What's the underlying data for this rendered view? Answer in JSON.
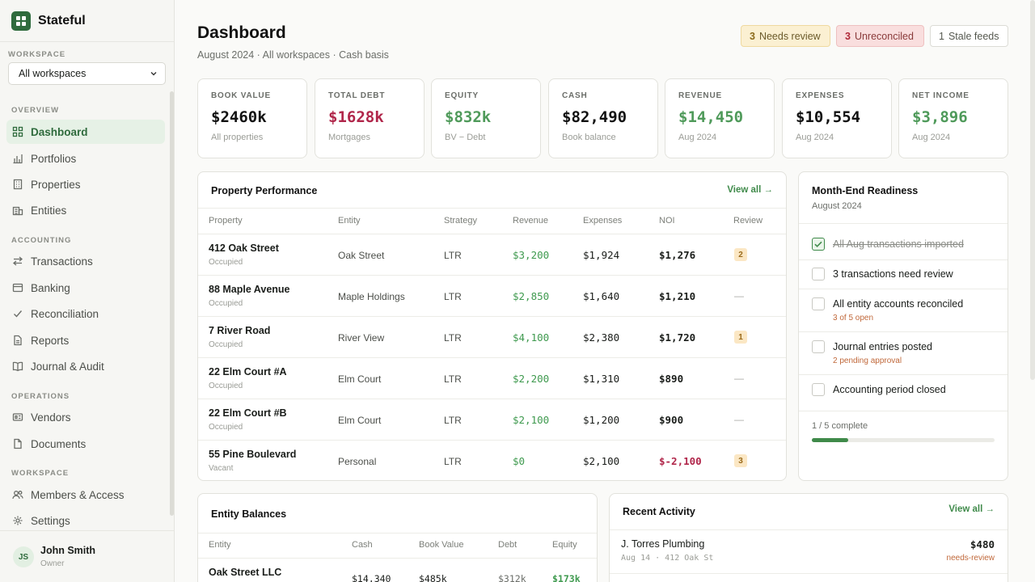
{
  "app": {
    "name": "Stateful"
  },
  "sidebar": {
    "workspace_label": "WORKSPACE",
    "workspace_select": "All workspaces",
    "sections": [
      {
        "label": "OVERVIEW",
        "items": [
          {
            "label": "Dashboard",
            "icon": "grid-icon",
            "active": true
          },
          {
            "label": "Portfolios",
            "icon": "bar-chart-icon"
          },
          {
            "label": "Properties",
            "icon": "building-icon"
          },
          {
            "label": "Entities",
            "icon": "office-icon"
          }
        ]
      },
      {
        "label": "ACCOUNTING",
        "items": [
          {
            "label": "Transactions",
            "icon": "arrows-icon"
          },
          {
            "label": "Banking",
            "icon": "card-icon"
          },
          {
            "label": "Reconciliation",
            "icon": "check-icon"
          },
          {
            "label": "Reports",
            "icon": "file-icon"
          },
          {
            "label": "Journal & Audit",
            "icon": "book-icon"
          }
        ]
      },
      {
        "label": "OPERATIONS",
        "items": [
          {
            "label": "Vendors",
            "icon": "vendor-icon"
          },
          {
            "label": "Documents",
            "icon": "document-icon"
          }
        ]
      },
      {
        "label": "WORKSPACE",
        "items": [
          {
            "label": "Members & Access",
            "icon": "users-icon"
          },
          {
            "label": "Settings",
            "icon": "gear-icon"
          }
        ]
      }
    ],
    "user": {
      "initials": "JS",
      "name": "John Smith",
      "role": "Owner"
    }
  },
  "header": {
    "title": "Dashboard",
    "subtitle": "August 2024 · All workspaces · Cash basis",
    "badges": [
      {
        "count": "3",
        "label": "Needs review"
      },
      {
        "count": "3",
        "label": "Unreconciled"
      },
      {
        "count": "1",
        "label": "Stale feeds"
      }
    ]
  },
  "kpis": [
    {
      "label": "BOOK VALUE",
      "value": "$2460k",
      "sub": "All properties",
      "tone": ""
    },
    {
      "label": "TOTAL DEBT",
      "value": "$1628k",
      "sub": "Mortgages",
      "tone": "red"
    },
    {
      "label": "EQUITY",
      "value": "$832k",
      "sub": "BV − Debt",
      "tone": "green"
    },
    {
      "label": "CASH",
      "value": "$82,490",
      "sub": "Book balance",
      "tone": ""
    },
    {
      "label": "REVENUE",
      "value": "$14,450",
      "sub": "Aug 2024",
      "tone": "green"
    },
    {
      "label": "EXPENSES",
      "value": "$10,554",
      "sub": "Aug 2024",
      "tone": ""
    },
    {
      "label": "NET INCOME",
      "value": "$3,896",
      "sub": "Aug 2024",
      "tone": "green"
    }
  ],
  "performance": {
    "title": "Property Performance",
    "view_all": "View all →",
    "columns": [
      "Property",
      "Entity",
      "Strategy",
      "Revenue",
      "Expenses",
      "NOI",
      "Review"
    ],
    "rows": [
      {
        "property": "412 Oak Street",
        "status": "Occupied",
        "entity": "Oak Street",
        "strategy": "LTR",
        "revenue": "$3,200",
        "expenses": "$1,924",
        "noi": "$1,276",
        "review": "2"
      },
      {
        "property": "88 Maple Avenue",
        "status": "Occupied",
        "entity": "Maple Holdings",
        "strategy": "LTR",
        "revenue": "$2,850",
        "expenses": "$1,640",
        "noi": "$1,210",
        "review": "—"
      },
      {
        "property": "7 River Road",
        "status": "Occupied",
        "entity": "River View",
        "strategy": "LTR",
        "revenue": "$4,100",
        "expenses": "$2,380",
        "noi": "$1,720",
        "review": "1"
      },
      {
        "property": "22 Elm Court #A",
        "status": "Occupied",
        "entity": "Elm Court",
        "strategy": "LTR",
        "revenue": "$2,200",
        "expenses": "$1,310",
        "noi": "$890",
        "review": "—"
      },
      {
        "property": "22 Elm Court #B",
        "status": "Occupied",
        "entity": "Elm Court",
        "strategy": "LTR",
        "revenue": "$2,100",
        "expenses": "$1,200",
        "noi": "$900",
        "review": "—"
      },
      {
        "property": "55 Pine Boulevard",
        "status": "Vacant",
        "entity": "Personal",
        "strategy": "LTR",
        "revenue": "$0",
        "expenses": "$2,100",
        "noi": "$-2,100",
        "review": "3"
      }
    ]
  },
  "readiness": {
    "title": "Month-End Readiness",
    "subtitle": "August 2024",
    "items": [
      {
        "label": "All Aug transactions imported",
        "done": true,
        "sub": ""
      },
      {
        "label": "3 transactions need review",
        "done": false,
        "sub": ""
      },
      {
        "label": "All entity accounts reconciled",
        "done": false,
        "sub": "3 of 5 open"
      },
      {
        "label": "Journal entries posted",
        "done": false,
        "sub": "2 pending approval"
      },
      {
        "label": "Accounting period closed",
        "done": false,
        "sub": ""
      }
    ],
    "progress_label": "1 / 5 complete",
    "progress_fraction": 0.2
  },
  "entity_balances": {
    "title": "Entity Balances",
    "columns": [
      "Entity",
      "Cash",
      "Book Value",
      "Debt",
      "Equity"
    ],
    "rows": [
      {
        "entity": "Oak Street LLC",
        "cash": "$14,340",
        "book": "$485k",
        "debt": "$312k",
        "equity": "$173k"
      }
    ]
  },
  "activity": {
    "title": "Recent Activity",
    "view_all": "View all →",
    "items": [
      {
        "name": "J. Torres Plumbing",
        "meta": "Aug 14 · 412 Oak St",
        "amount": "$480",
        "status": "needs-review"
      }
    ]
  }
}
